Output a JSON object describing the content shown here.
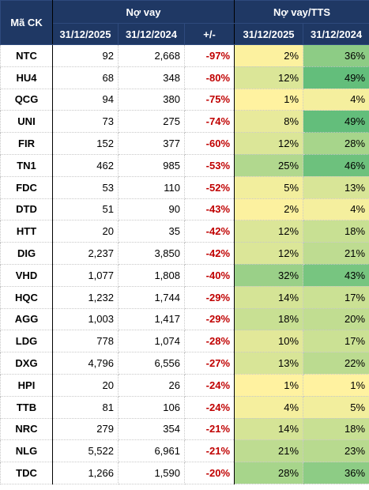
{
  "header": {
    "code_label": "Mã CK",
    "debt_group": "Nợ vay",
    "ratio_group": "Nợ vay/TTS",
    "debt_2025": "31/12/2025",
    "debt_2024": "31/12/2024",
    "change": "+/-",
    "ratio_2025": "31/12/2025",
    "ratio_2024": "31/12/2024"
  },
  "rows": [
    {
      "code": "NTC",
      "debt_2025": "92",
      "debt_2024": "2,668",
      "change": "-97%",
      "ratio_2025": "2%",
      "ratio_2024": "36%"
    },
    {
      "code": "HU4",
      "debt_2025": "68",
      "debt_2024": "348",
      "change": "-80%",
      "ratio_2025": "12%",
      "ratio_2024": "49%"
    },
    {
      "code": "QCG",
      "debt_2025": "94",
      "debt_2024": "380",
      "change": "-75%",
      "ratio_2025": "1%",
      "ratio_2024": "4%"
    },
    {
      "code": "UNI",
      "debt_2025": "73",
      "debt_2024": "275",
      "change": "-74%",
      "ratio_2025": "8%",
      "ratio_2024": "49%"
    },
    {
      "code": "FIR",
      "debt_2025": "152",
      "debt_2024": "377",
      "change": "-60%",
      "ratio_2025": "12%",
      "ratio_2024": "28%"
    },
    {
      "code": "TN1",
      "debt_2025": "462",
      "debt_2024": "985",
      "change": "-53%",
      "ratio_2025": "25%",
      "ratio_2024": "46%"
    },
    {
      "code": "FDC",
      "debt_2025": "53",
      "debt_2024": "110",
      "change": "-52%",
      "ratio_2025": "5%",
      "ratio_2024": "13%"
    },
    {
      "code": "DTD",
      "debt_2025": "51",
      "debt_2024": "90",
      "change": "-43%",
      "ratio_2025": "2%",
      "ratio_2024": "4%"
    },
    {
      "code": "HTT",
      "debt_2025": "20",
      "debt_2024": "35",
      "change": "-42%",
      "ratio_2025": "12%",
      "ratio_2024": "18%"
    },
    {
      "code": "DIG",
      "debt_2025": "2,237",
      "debt_2024": "3,850",
      "change": "-42%",
      "ratio_2025": "12%",
      "ratio_2024": "21%"
    },
    {
      "code": "VHD",
      "debt_2025": "1,077",
      "debt_2024": "1,808",
      "change": "-40%",
      "ratio_2025": "32%",
      "ratio_2024": "43%"
    },
    {
      "code": "HQC",
      "debt_2025": "1,232",
      "debt_2024": "1,744",
      "change": "-29%",
      "ratio_2025": "14%",
      "ratio_2024": "17%"
    },
    {
      "code": "AGG",
      "debt_2025": "1,003",
      "debt_2024": "1,417",
      "change": "-29%",
      "ratio_2025": "18%",
      "ratio_2024": "20%"
    },
    {
      "code": "LDG",
      "debt_2025": "778",
      "debt_2024": "1,074",
      "change": "-28%",
      "ratio_2025": "10%",
      "ratio_2024": "17%"
    },
    {
      "code": "DXG",
      "debt_2025": "4,796",
      "debt_2024": "6,556",
      "change": "-27%",
      "ratio_2025": "13%",
      "ratio_2024": "22%"
    },
    {
      "code": "HPI",
      "debt_2025": "20",
      "debt_2024": "26",
      "change": "-24%",
      "ratio_2025": "1%",
      "ratio_2024": "1%"
    },
    {
      "code": "TTB",
      "debt_2025": "81",
      "debt_2024": "106",
      "change": "-24%",
      "ratio_2025": "4%",
      "ratio_2024": "5%"
    },
    {
      "code": "NRC",
      "debt_2025": "279",
      "debt_2024": "354",
      "change": "-21%",
      "ratio_2025": "14%",
      "ratio_2024": "18%"
    },
    {
      "code": "NLG",
      "debt_2025": "5,522",
      "debt_2024": "6,961",
      "change": "-21%",
      "ratio_2025": "21%",
      "ratio_2024": "23%"
    },
    {
      "code": "TDC",
      "debt_2025": "1,266",
      "debt_2024": "1,590",
      "change": "-20%",
      "ratio_2025": "28%",
      "ratio_2024": "36%"
    }
  ],
  "colors": {
    "header_bg": "#1f3864",
    "header_text": "#ffffff",
    "negative_change": "#c00000",
    "scale_low": "#fff2a0",
    "scale_high": "#63be7b"
  }
}
